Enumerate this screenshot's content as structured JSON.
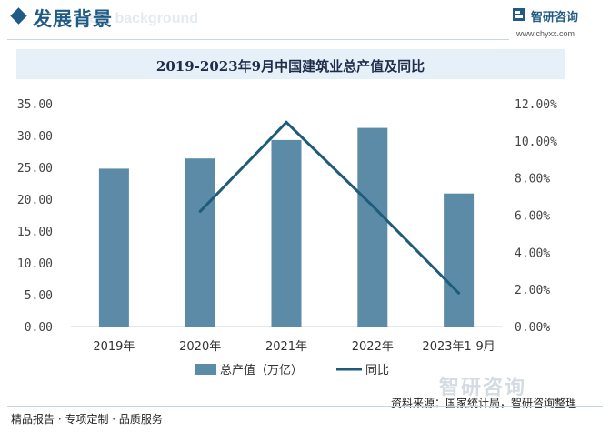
{
  "header": {
    "section_title": "发展背景",
    "section_subtitle": "ent background",
    "brand_name": "智研咨询",
    "brand_url": "www.chyxx.com"
  },
  "watermark": {
    "brand": "智研咨询"
  },
  "footer": {
    "left": "精品报告 · 专项定制 · 品质服务",
    "source": "资料来源：国家统计局，智研咨询整理"
  },
  "colors": {
    "bar": "#5b8ba6",
    "line": "#1f5b7a",
    "accent": "#1f5b84"
  },
  "chart_data": {
    "type": "bar",
    "title": "2019-2023年9月中国建筑业总产值及同比",
    "categories": [
      "2019年",
      "2020年",
      "2021年",
      "2022年",
      "2023年1-9月"
    ],
    "series": [
      {
        "name": "总产值（万亿）",
        "type": "bar",
        "axis": "left",
        "values": [
          24.8,
          26.4,
          29.3,
          31.2,
          20.9
        ]
      },
      {
        "name": "同比",
        "type": "line",
        "axis": "right",
        "values": [
          null,
          0.062,
          0.11,
          0.065,
          0.018
        ]
      }
    ],
    "y_left": {
      "min": 0,
      "max": 35,
      "ticks": [
        "0.00",
        "5.00",
        "10.00",
        "15.00",
        "20.00",
        "25.00",
        "30.00",
        "35.00"
      ]
    },
    "y_right": {
      "min": 0,
      "max": 0.12,
      "ticks": [
        "0.00%",
        "2.00%",
        "4.00%",
        "6.00%",
        "8.00%",
        "10.00%",
        "12.00%"
      ]
    },
    "legend_position": "bottom",
    "grid": false
  }
}
